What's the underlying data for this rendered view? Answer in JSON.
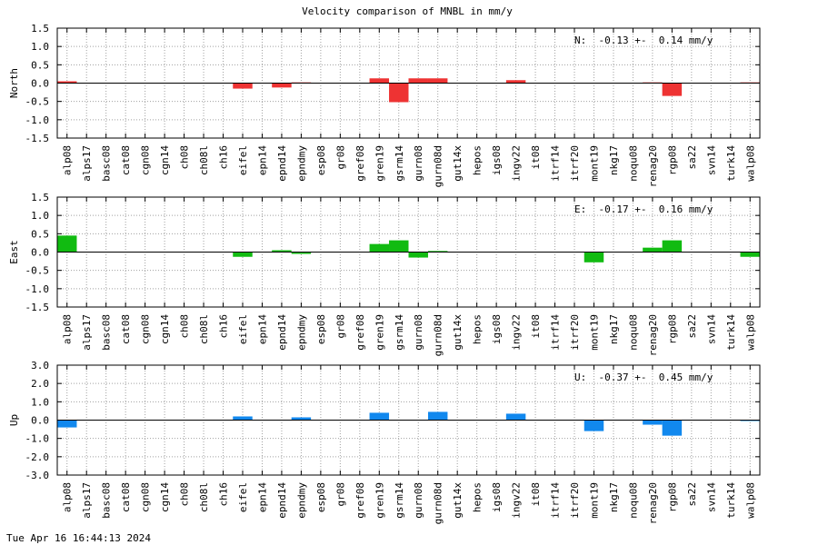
{
  "title": "Velocity comparison of MNBL in mm/y",
  "footer_timestamp": "Tue Apr 16 16:44:13 2024",
  "chart_data": {
    "type": "bar",
    "title": "Velocity comparison of MNBL in mm/y",
    "categories": [
      "alp08",
      "alps17",
      "basc08",
      "cat08",
      "cgn08",
      "cgn14",
      "ch08",
      "ch08l",
      "ch16",
      "eifel",
      "epn14",
      "epnd14",
      "epndmy",
      "esp08",
      "gr08",
      "gref08",
      "gren19",
      "gsrm14",
      "gurn08",
      "gurn08d",
      "gut14x",
      "hepos",
      "igs08",
      "ingv22",
      "it08",
      "itrf14",
      "itrf20",
      "mont19",
      "nkg17",
      "noqu08",
      "renag20",
      "rgp08",
      "sa22",
      "svn14",
      "turk14",
      "walp08"
    ],
    "grid": true,
    "panels": [
      {
        "ylabel": "North",
        "summary": "N:  -0.13 +-  0.14 mm/y",
        "ylim": [
          -1.5,
          1.5
        ],
        "yticks": [
          "-1.5",
          "-1.0",
          "-0.5",
          "0.0",
          "0.5",
          "1.0",
          "1.5"
        ],
        "color": "#ee3333",
        "values": [
          0.05,
          0,
          0,
          0,
          0,
          0,
          0,
          0,
          0,
          -0.15,
          0,
          -0.12,
          0.02,
          0,
          0,
          0,
          0.13,
          -0.52,
          0.13,
          0.13,
          0,
          0,
          0,
          0.08,
          0,
          0,
          0,
          0,
          0,
          0,
          0.02,
          -0.35,
          0,
          0,
          0,
          0.02
        ]
      },
      {
        "ylabel": "East",
        "summary": "E:  -0.17 +-  0.16 mm/y",
        "ylim": [
          -1.5,
          1.5
        ],
        "yticks": [
          "-1.5",
          "-1.0",
          "-0.5",
          "0.0",
          "0.5",
          "1.0",
          "1.5"
        ],
        "color": "#11bb11",
        "values": [
          0.45,
          0,
          0,
          0,
          0,
          0,
          0,
          0,
          0,
          -0.13,
          0,
          0.05,
          -0.05,
          0,
          0,
          0,
          0.22,
          0.32,
          -0.15,
          0.03,
          0,
          0,
          0,
          0,
          0,
          0,
          0,
          -0.28,
          0,
          0,
          0.12,
          0.32,
          0,
          0,
          0,
          -0.13
        ]
      },
      {
        "ylabel": "Up",
        "summary": "U:  -0.37 +-  0.45 mm/y",
        "ylim": [
          -3.0,
          3.0
        ],
        "yticks": [
          "-3.0",
          "-2.0",
          "-1.0",
          "0.0",
          "1.0",
          "2.0",
          "3.0"
        ],
        "color": "#1188ee",
        "values": [
          -0.4,
          0,
          0,
          0,
          0,
          0,
          0,
          0,
          0,
          0.2,
          0,
          0,
          0.15,
          0,
          0,
          0,
          0.4,
          0,
          0,
          0.45,
          0,
          0,
          0,
          0.35,
          0,
          0,
          0,
          -0.6,
          0,
          0,
          -0.25,
          -0.85,
          0,
          0,
          0,
          -0.05
        ]
      }
    ]
  }
}
